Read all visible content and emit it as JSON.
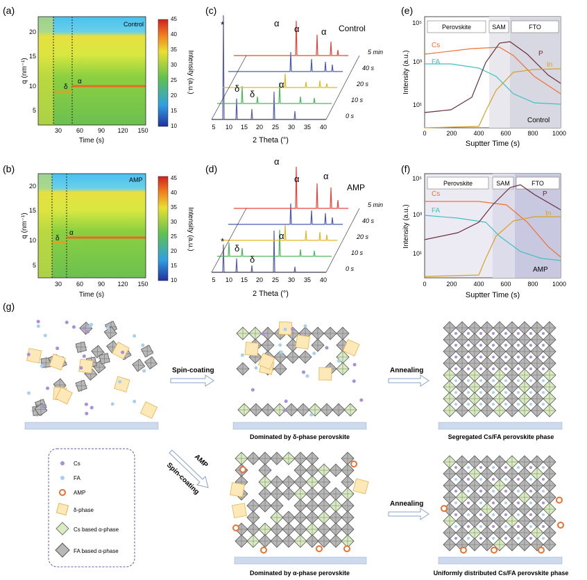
{
  "panels": {
    "a": {
      "label": "(a)",
      "tag": "Control",
      "xlabel": "Time (s)",
      "ylabel": "q (nm⁻¹)",
      "cblabel": "Intensity (a.u.)",
      "xticks": [
        "30",
        "60",
        "90",
        "120",
        "150"
      ],
      "yticks": [
        "5",
        "10",
        "15",
        "20"
      ],
      "cbticks": [
        "10",
        "15",
        "20",
        "25",
        "30",
        "35",
        "40",
        "45"
      ],
      "phase_delta": "δ",
      "phase_alpha": "α"
    },
    "b": {
      "label": "(b)",
      "tag": "AMP",
      "xlabel": "Time (s)",
      "ylabel": "q (nm⁻¹)",
      "cblabel": "Intensity (a.u.)",
      "xticks": [
        "30",
        "60",
        "90",
        "120",
        "150"
      ],
      "yticks": [
        "5",
        "10",
        "15",
        "20"
      ],
      "cbticks": [
        "10",
        "15",
        "20",
        "25",
        "30",
        "35",
        "40",
        "45"
      ],
      "phase_delta": "δ",
      "phase_alpha": "α"
    },
    "c": {
      "label": "(c)",
      "tag": "Control",
      "xlabel": "2 Theta (°)",
      "xticks": [
        "5",
        "10",
        "15",
        "20",
        "25",
        "30",
        "35",
        "40"
      ],
      "times": [
        "5 min",
        "40 s",
        "20 s",
        "10 s",
        "0 s"
      ],
      "annot": [
        "α",
        "α",
        "α",
        "δ",
        "δ",
        "α",
        "*"
      ]
    },
    "d": {
      "label": "(d)",
      "tag": "AMP",
      "xlabel": "2 Theta (°)",
      "xticks": [
        "5",
        "10",
        "15",
        "20",
        "25",
        "30",
        "35",
        "40"
      ],
      "times": [
        "5 min",
        "40 s",
        "20 s",
        "10 s",
        "0 s"
      ],
      "annot": [
        "α",
        "α",
        "α",
        "δ",
        "δ",
        "α",
        "*"
      ]
    },
    "e": {
      "label": "(e)",
      "tag": "Control",
      "xlabel": "Suptter Time (s)",
      "ylabel": "Intensity (a.u.)",
      "xticks": [
        "0",
        "200",
        "400",
        "600",
        "800",
        "1000"
      ],
      "yticks": [
        "10¹",
        "10³",
        "10⁵"
      ],
      "regions": [
        "Perovskite",
        "SAM",
        "FTO"
      ],
      "series": [
        "Cs",
        "FA",
        "P",
        "In"
      ]
    },
    "f": {
      "label": "(f)",
      "tag": "AMP",
      "xlabel": "Suptter Time (s)",
      "ylabel": "Intensity (a.u.)",
      "xticks": [
        "0",
        "200",
        "400",
        "600",
        "800",
        "1000"
      ],
      "yticks": [
        "10¹",
        "10³",
        "10⁵"
      ],
      "regions": [
        "Perovskite",
        "SAM",
        "FTO"
      ],
      "series": [
        "Cs",
        "FA",
        "P",
        "In"
      ]
    },
    "g": {
      "label": "(g)",
      "spin": "Spin-coating",
      "anneal1": "Annealing",
      "anneal2": "Annealing",
      "amp_arrow": "AMP",
      "amp_spin": "Spin-coating",
      "cap1": "Dominated by δ-phase perovskite",
      "cap2": "Segregated Cs/FA perovskite phase",
      "cap3": "Dominated by α-phase perovskite",
      "cap4": "Uniformly distributed Cs/FA perovskite phase",
      "legend": [
        "Cs",
        "FA",
        "AMP",
        "δ-phase",
        "Cs based α-phase",
        "FA based α-phase"
      ]
    }
  },
  "colors": {
    "red": "#e8433a",
    "blue": "#4a5bb5",
    "yellow": "#e0b820",
    "green": "#4cb85a",
    "navy": "#5a5fa8",
    "cs": "#f07030",
    "fa": "#40c0c0",
    "p": "#6b2c3a",
    "in": "#d8a020",
    "delta": "#f0c060",
    "gray": "#8a8a8a"
  }
}
